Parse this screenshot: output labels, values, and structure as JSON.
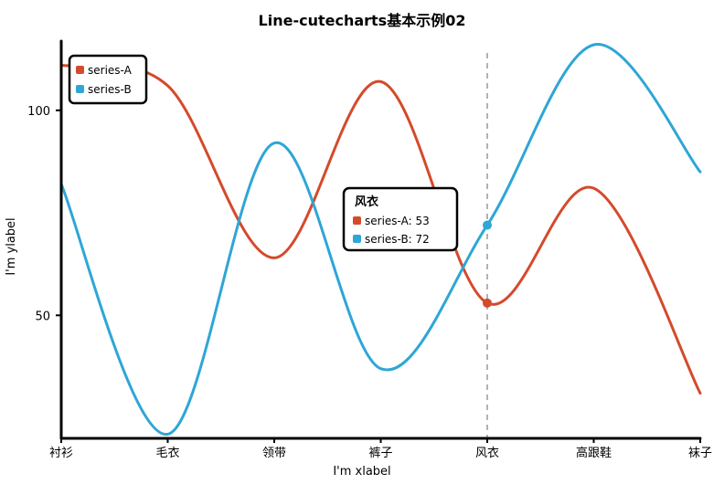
{
  "chart_data": {
    "type": "line",
    "title": "Line-cutecharts基本示例02",
    "xlabel": "I'm xlabel",
    "ylabel": "I'm ylabel",
    "categories": [
      "衬衫",
      "毛衣",
      "领带",
      "裤子",
      "风衣",
      "高跟鞋",
      "袜子"
    ],
    "series": [
      {
        "name": "series-A",
        "color": "#d44a2b",
        "values": [
          111,
          106,
          64,
          107,
          53,
          81,
          31
        ]
      },
      {
        "name": "series-B",
        "color": "#2ea6d6",
        "values": [
          82,
          21,
          92,
          37,
          72,
          116,
          85
        ]
      }
    ],
    "yticks": [
      50,
      100
    ],
    "ylim": [
      20,
      118
    ],
    "legend_position": "top-left",
    "tooltip": {
      "category": "风衣",
      "title": "风衣",
      "items": [
        {
          "text": "series-A: 53",
          "color": "#d44a2b"
        },
        {
          "text": "series-B: 72",
          "color": "#2ea6d6"
        }
      ]
    }
  }
}
